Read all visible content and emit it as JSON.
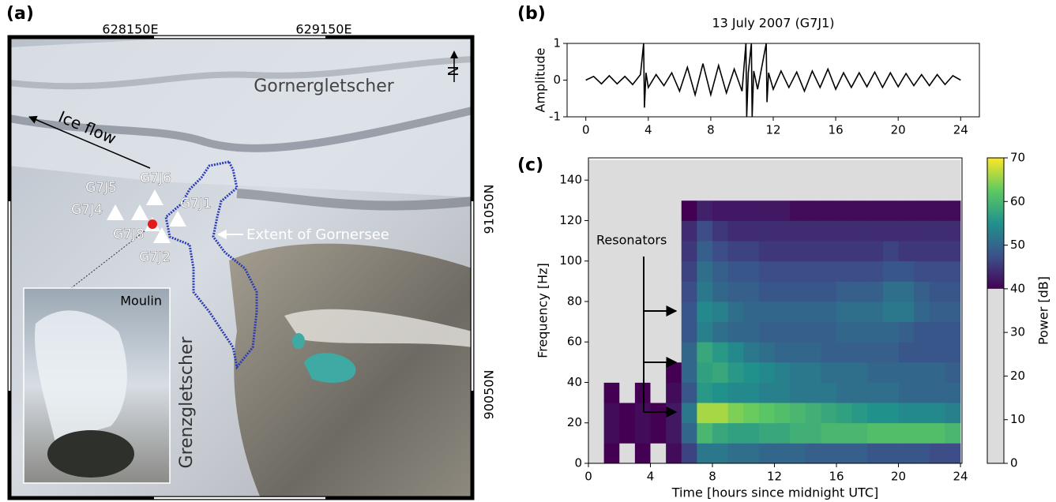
{
  "panel_a": {
    "panel_label": "(a)",
    "easting_labels": [
      "628150E",
      "629150E"
    ],
    "northing_labels": [
      "91050N",
      "90050N"
    ],
    "north_label": "N",
    "glacier_labels": [
      "Gornergletscher",
      "Grenzgletscher"
    ],
    "ice_flow_label": "Ice flow",
    "lake_label": "Extent of Gornersee",
    "inset_label": "Moulin",
    "stations": [
      "G7J5",
      "G7J6",
      "G7J4",
      "G7J1",
      "G7J8",
      "G7J2"
    ]
  },
  "chart_data": [
    {
      "type": "line",
      "panel_label": "(b)",
      "title": "13 July 2007 (G7J1)",
      "ylabel": "Amplitude",
      "color": "#000000",
      "x": [
        0,
        0.5,
        1,
        1.5,
        2,
        2.5,
        3,
        3.5,
        3.7,
        3.75,
        3.85,
        4,
        4.5,
        5,
        5.5,
        6,
        6.5,
        7,
        7.5,
        8,
        8.5,
        9,
        9.5,
        10,
        10.25,
        10.3,
        10.4,
        10.6,
        10.65,
        10.75,
        11,
        11.55,
        11.6,
        11.7,
        12,
        12.5,
        13,
        13.5,
        14,
        14.5,
        15,
        15.5,
        16,
        16.5,
        17,
        17.5,
        18,
        18.5,
        19,
        19.5,
        20,
        20.5,
        21,
        21.5,
        22,
        22.5,
        23,
        23.5,
        24
      ],
      "values": [
        0,
        0.1,
        -0.1,
        0.12,
        -0.1,
        0.1,
        -0.12,
        0.15,
        1,
        -0.75,
        0.2,
        -0.2,
        0.15,
        -0.15,
        0.2,
        -0.3,
        0.35,
        -0.4,
        0.45,
        -0.4,
        0.4,
        -0.35,
        0.3,
        -0.3,
        1,
        -1,
        0.2,
        1,
        -1,
        0.25,
        -0.25,
        1,
        -0.6,
        0.2,
        -0.25,
        0.25,
        -0.2,
        0.22,
        -0.3,
        0.25,
        -0.2,
        0.3,
        -0.25,
        0.2,
        -0.2,
        0.2,
        -0.18,
        0.22,
        -0.2,
        0.2,
        -0.18,
        0.18,
        -0.15,
        0.15,
        -0.15,
        0.15,
        -0.12,
        0.12,
        0
      ],
      "xlim": [
        -1.2,
        25.2
      ],
      "ylim": [
        -1,
        1
      ],
      "xticks": [
        0,
        4,
        8,
        12,
        16,
        20,
        24
      ],
      "yticks": [
        -1,
        0,
        1
      ]
    },
    {
      "type": "heatmap",
      "panel_label": "(c)",
      "xlabel": "Time [hours since midnight UTC]",
      "ylabel": "Frequency [Hz]",
      "annotation": "Resonators",
      "colorbar_label": "Power [dB]",
      "colormap": "viridis",
      "mask_below": 40,
      "mask_color": "#dcdcdc",
      "x_edges": [
        0,
        1,
        2,
        3,
        4,
        5,
        6,
        7,
        8,
        9,
        10,
        11,
        12,
        13,
        14,
        15,
        16,
        17,
        18,
        19,
        20,
        21,
        22,
        23,
        24
      ],
      "y_edges": [
        0,
        10,
        20,
        30,
        40,
        50,
        60,
        70,
        80,
        90,
        100,
        110,
        120,
        130,
        140,
        150
      ],
      "z": [
        [
          38,
          40,
          39,
          40,
          39,
          41,
          46,
          52,
          52,
          51,
          51,
          50,
          50,
          50,
          49,
          49,
          49,
          49,
          48,
          48,
          48,
          48,
          47,
          47
        ],
        [
          39,
          41,
          40,
          41,
          40,
          42,
          50,
          60,
          58,
          57,
          57,
          58,
          58,
          59,
          59,
          60,
          60,
          60,
          61,
          61,
          61,
          61,
          61,
          60
        ],
        [
          39,
          41,
          40,
          41,
          40,
          42,
          52,
          66,
          66,
          64,
          63,
          62,
          61,
          60,
          59,
          58,
          57,
          56,
          55,
          55,
          54,
          54,
          54,
          53
        ],
        [
          38,
          40,
          39,
          40,
          39,
          41,
          48,
          56,
          55,
          54,
          54,
          53,
          53,
          52,
          52,
          52,
          51,
          51,
          51,
          51,
          50,
          50,
          50,
          50
        ],
        [
          38,
          39,
          38,
          39,
          38,
          40,
          50,
          57,
          58,
          56,
          55,
          54,
          53,
          52,
          52,
          51,
          51,
          51,
          50,
          50,
          50,
          50,
          50,
          49
        ],
        [
          37,
          38,
          37,
          38,
          37,
          39,
          50,
          58,
          56,
          54,
          52,
          51,
          50,
          50,
          50,
          49,
          49,
          49,
          49,
          49,
          48,
          48,
          48,
          48
        ],
        [
          37,
          38,
          37,
          38,
          37,
          39,
          48,
          53,
          51,
          50,
          50,
          49,
          49,
          49,
          49,
          49,
          50,
          50,
          50,
          50,
          49,
          48,
          48,
          48
        ],
        [
          36,
          37,
          36,
          37,
          36,
          38,
          48,
          54,
          53,
          51,
          50,
          50,
          50,
          50,
          50,
          50,
          51,
          51,
          51,
          52,
          52,
          50,
          49,
          49
        ],
        [
          36,
          37,
          36,
          37,
          36,
          38,
          47,
          52,
          50,
          49,
          49,
          48,
          48,
          48,
          48,
          48,
          49,
          49,
          49,
          51,
          51,
          49,
          48,
          48
        ],
        [
          35,
          36,
          35,
          36,
          35,
          37,
          46,
          51,
          49,
          48,
          48,
          47,
          47,
          47,
          47,
          47,
          47,
          47,
          47,
          48,
          48,
          47,
          47,
          47
        ],
        [
          35,
          36,
          35,
          36,
          35,
          37,
          45,
          49,
          47,
          46,
          46,
          45,
          45,
          45,
          45,
          45,
          45,
          45,
          45,
          46,
          45,
          45,
          45,
          45
        ],
        [
          34,
          35,
          34,
          35,
          34,
          36,
          44,
          47,
          45,
          44,
          44,
          44,
          44,
          44,
          44,
          44,
          44,
          44,
          44,
          44,
          44,
          44,
          44,
          44
        ],
        [
          34,
          34,
          34,
          34,
          34,
          35,
          40,
          43,
          42,
          42,
          42,
          42,
          42,
          41,
          41,
          41,
          41,
          41,
          41,
          41,
          41,
          41,
          41,
          41
        ],
        [
          33,
          33,
          33,
          33,
          33,
          33,
          34,
          36,
          35,
          34,
          34,
          34,
          34,
          34,
          34,
          34,
          34,
          34,
          34,
          34,
          34,
          34,
          34,
          34
        ],
        [
          33,
          33,
          33,
          33,
          33,
          33,
          33,
          33,
          33,
          33,
          33,
          33,
          33,
          33,
          33,
          33,
          33,
          33,
          33,
          33,
          33,
          33,
          33,
          33
        ]
      ],
      "xlim": [
        0,
        24.1
      ],
      "ylim": [
        0,
        151
      ],
      "xticks": [
        0,
        4,
        8,
        12,
        16,
        20,
        24
      ],
      "yticks": [
        0,
        20,
        40,
        60,
        80,
        100,
        120,
        140
      ],
      "colorbar_lim": [
        0,
        70
      ],
      "colorbar_ticks": [
        0,
        10,
        20,
        30,
        40,
        50,
        60,
        70
      ]
    }
  ]
}
